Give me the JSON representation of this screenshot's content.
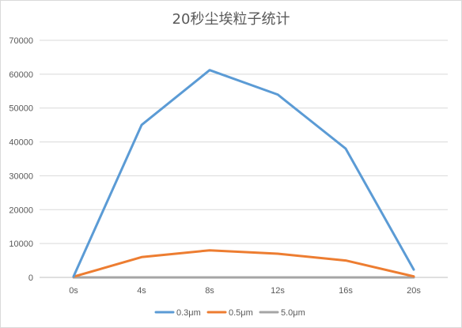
{
  "chart_data": {
    "type": "line",
    "title": "20秒尘埃粒子统计",
    "xlabel": "",
    "ylabel": "",
    "categories": [
      "0s",
      "4s",
      "8s",
      "12s",
      "16s",
      "20s"
    ],
    "ylim": [
      0,
      70000
    ],
    "yticks": [
      0,
      10000,
      20000,
      30000,
      40000,
      50000,
      60000,
      70000
    ],
    "ytick_labels": [
      "0",
      "10000",
      "20000",
      "30000",
      "40000",
      "50000",
      "60000",
      "70000"
    ],
    "grid": true,
    "legend_position": "bottom",
    "series": [
      {
        "name": "0.3μm",
        "color": "#5b9bd5",
        "values": [
          300,
          45000,
          61200,
          54000,
          38000,
          2300
        ]
      },
      {
        "name": "0.5μm",
        "color": "#ed7d31",
        "values": [
          200,
          6000,
          8000,
          7000,
          5000,
          300
        ]
      },
      {
        "name": "5.0μm",
        "color": "#a5a5a5",
        "values": [
          0,
          0,
          0,
          0,
          0,
          0
        ]
      }
    ]
  }
}
